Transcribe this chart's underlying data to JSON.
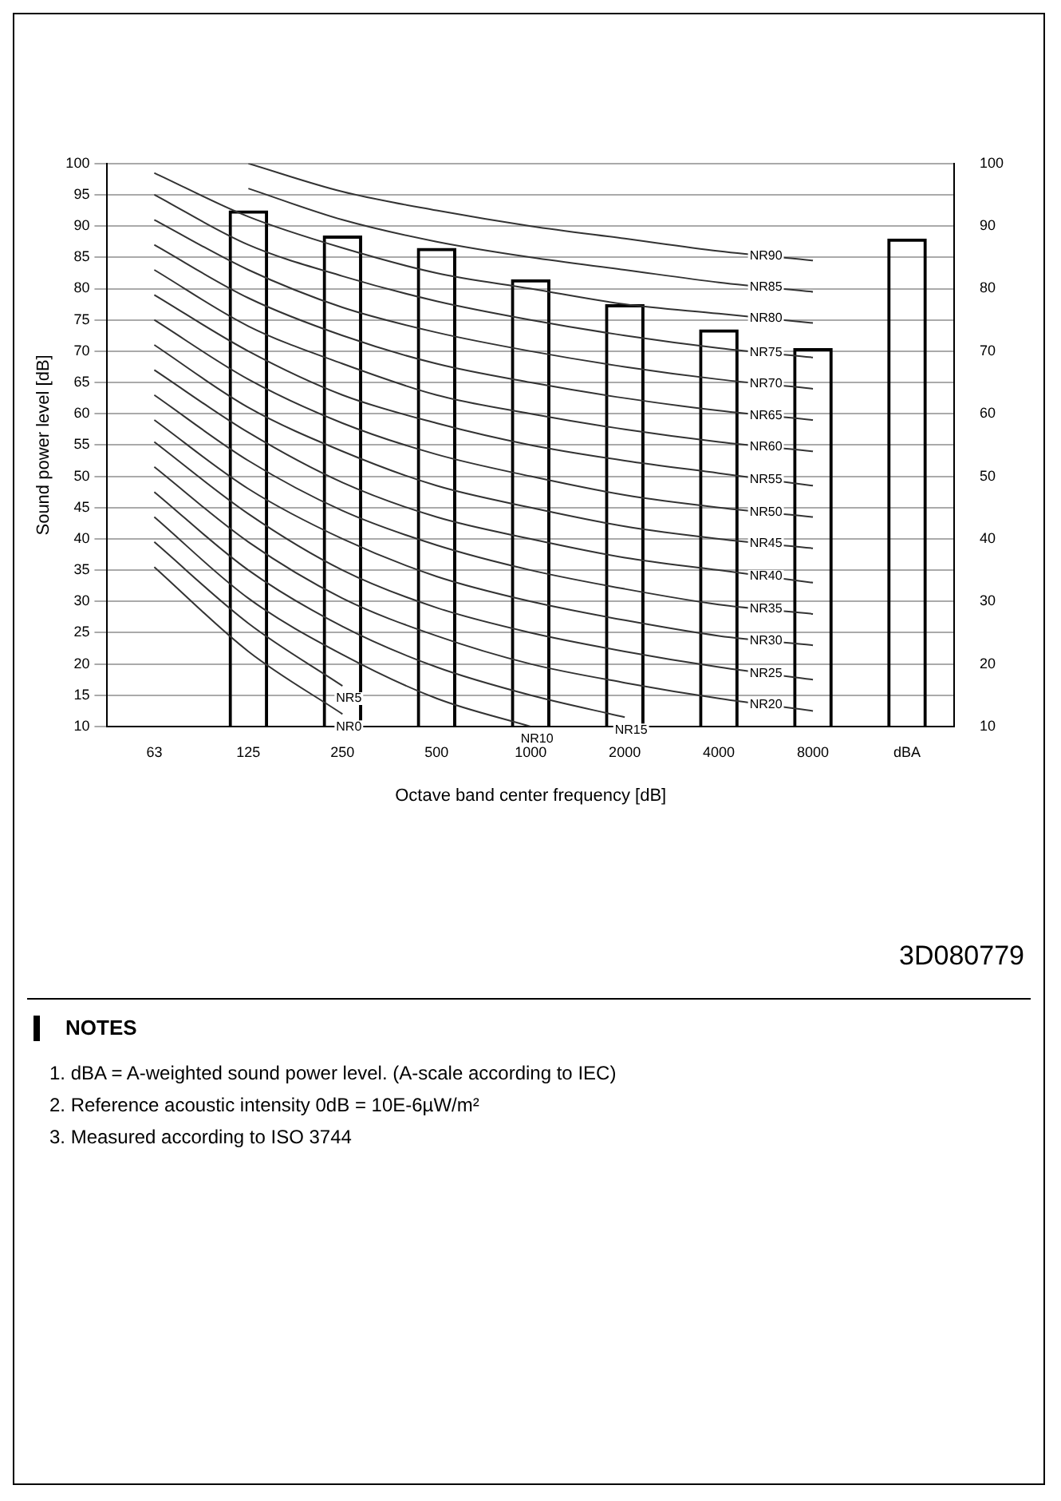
{
  "chart_data": {
    "type": "bar",
    "xlabel": "Octave band center frequency [dB]",
    "ylabel": "Sound power level [dB]",
    "categories": [
      "63",
      "125",
      "250",
      "500",
      "1000",
      "2000",
      "4000",
      "8000",
      "dBA"
    ],
    "series": [
      {
        "color": "#000000",
        "values": [
          10,
          92.5,
          88.5,
          86.5,
          81.5,
          77.5,
          73.5,
          70.5,
          88
        ]
      },
      {
        "type": "line",
        "name": "NR0",
        "color": "#333333",
        "values": [
          35.5,
          22,
          12,
          null,
          null,
          null,
          null,
          null,
          null
        ]
      },
      {
        "type": "line",
        "name": "NR5",
        "color": "#333333",
        "values": [
          39.5,
          26.5,
          16.5,
          null,
          null,
          null,
          null,
          null,
          null
        ]
      },
      {
        "type": "line",
        "name": "NR10",
        "color": "#333333",
        "values": [
          43.5,
          30.5,
          21.5,
          14.5,
          10,
          null,
          null,
          null,
          null
        ]
      },
      {
        "type": "line",
        "name": "NR15",
        "color": "#333333",
        "values": [
          47.5,
          35,
          26,
          19.5,
          15,
          11.5,
          null,
          null,
          null
        ]
      },
      {
        "type": "line",
        "name": "NR20",
        "color": "#333333",
        "values": [
          51.5,
          39.5,
          30.5,
          24.5,
          20,
          17,
          14.5,
          12.5,
          null
        ]
      },
      {
        "type": "line",
        "name": "NR25",
        "color": "#333333",
        "values": [
          55.5,
          44,
          35,
          29,
          25,
          22,
          19.5,
          17.5,
          null
        ]
      },
      {
        "type": "line",
        "name": "NR30",
        "color": "#333333",
        "values": [
          59,
          48,
          40,
          34,
          30,
          27,
          24.5,
          23,
          null
        ]
      },
      {
        "type": "line",
        "name": "NR35",
        "color": "#333333",
        "values": [
          63,
          52.5,
          44.5,
          39,
          35,
          32,
          29.5,
          28,
          null
        ]
      },
      {
        "type": "line",
        "name": "NR40",
        "color": "#333333",
        "values": [
          67,
          57,
          49,
          43.5,
          40,
          37,
          35,
          33,
          null
        ]
      },
      {
        "type": "line",
        "name": "NR45",
        "color": "#333333",
        "values": [
          71,
          61,
          54,
          48.5,
          45,
          42,
          40,
          38.5,
          null
        ]
      },
      {
        "type": "line",
        "name": "NR50",
        "color": "#333333",
        "values": [
          75,
          65.5,
          58.5,
          53.5,
          50,
          47,
          45,
          43.5,
          null
        ]
      },
      {
        "type": "line",
        "name": "NR55",
        "color": "#333333",
        "values": [
          79,
          70,
          63,
          58.5,
          55,
          52.5,
          50.5,
          48.5,
          null
        ]
      },
      {
        "type": "line",
        "name": "NR60",
        "color": "#333333",
        "values": [
          83,
          74,
          68,
          63,
          60,
          57.5,
          55.5,
          54,
          null
        ]
      },
      {
        "type": "line",
        "name": "NR65",
        "color": "#333333",
        "values": [
          87,
          78.5,
          72.5,
          68,
          65,
          62.5,
          60.5,
          59,
          null
        ]
      },
      {
        "type": "line",
        "name": "NR70",
        "color": "#333333",
        "values": [
          91,
          83,
          77,
          73,
          70,
          67.5,
          65.5,
          64,
          null
        ]
      },
      {
        "type": "line",
        "name": "NR75",
        "color": "#333333",
        "values": [
          95,
          87,
          82,
          78,
          75,
          72.5,
          70.5,
          69,
          null
        ]
      },
      {
        "type": "line",
        "name": "NR80",
        "color": "#333333",
        "values": [
          98.5,
          91.5,
          86.5,
          82.5,
          80,
          77.5,
          76,
          74.5,
          null
        ]
      },
      {
        "type": "line",
        "name": "NR85",
        "color": "#333333",
        "values": [
          null,
          96,
          91,
          87.5,
          85,
          83,
          81,
          79.5,
          null
        ]
      },
      {
        "type": "line",
        "name": "NR90",
        "color": "#333333",
        "values": [
          null,
          100,
          95.5,
          92.5,
          90,
          88,
          86,
          84.5,
          null
        ]
      }
    ],
    "ylim": [
      10,
      100
    ],
    "yticks": [
      10,
      15,
      20,
      25,
      30,
      35,
      40,
      45,
      50,
      55,
      60,
      65,
      70,
      75,
      80,
      85,
      90,
      95,
      100
    ],
    "y2lim": [
      10,
      100
    ],
    "y2ticks": [
      10,
      20,
      30,
      40,
      50,
      60,
      70,
      80,
      90,
      100
    ],
    "grid": "y",
    "legend": false,
    "marker": "none",
    "annotations": [
      "3D080779",
      "NOTES",
      "1. dBA = A-weighted sound power level. (A-scale according to IEC)",
      "2. Reference acoustic intensity 0dB = 10E-6µW/m²",
      "3. Measured according to ISO 3744"
    ]
  }
}
